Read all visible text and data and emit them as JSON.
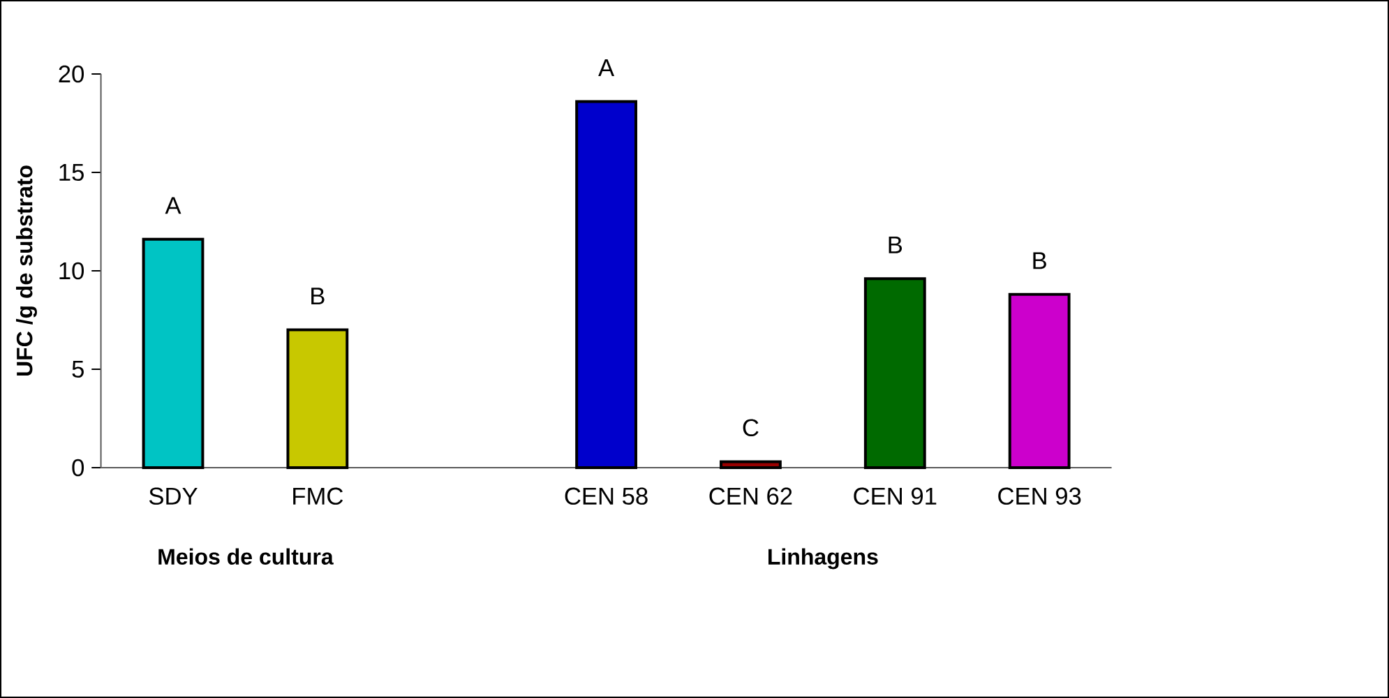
{
  "chart_data": {
    "type": "bar",
    "ylabel": "UFC /g de substrato",
    "categories": [
      "SDY",
      "FMC",
      null,
      "CEN 58",
      "CEN 62",
      "CEN 91",
      "CEN 93"
    ],
    "values": [
      11.6,
      7.0,
      null,
      18.6,
      0.3,
      9.6,
      8.8
    ],
    "colors": [
      "#00c4c4",
      "#c8c800",
      null,
      "#0000cc",
      "#990000",
      "#006a00",
      "#cc00cc"
    ],
    "value_labels": [
      "A",
      "B",
      null,
      "A",
      "C",
      "B",
      "B"
    ],
    "ylim": [
      0,
      20
    ],
    "yticks": [
      0,
      5,
      10,
      15,
      20
    ],
    "grid": false,
    "annotations": [
      "Meios de cultura",
      "Linhagens"
    ]
  }
}
